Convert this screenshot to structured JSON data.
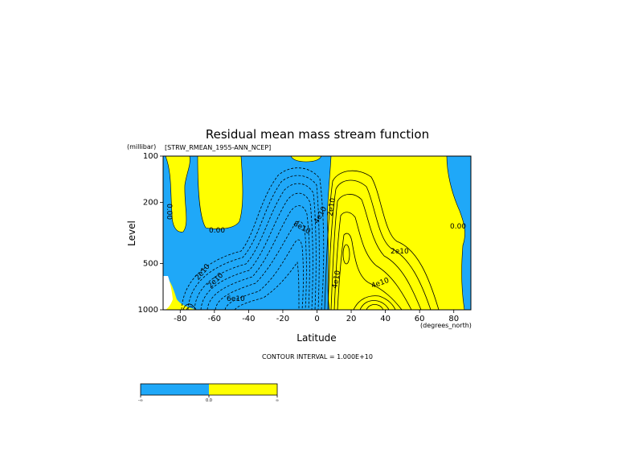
{
  "chart_data": {
    "type": "contour",
    "title": "Residual mean mass stream function",
    "dataset_label": "[STRW_RMEAN_1955-ANN_NCEP]",
    "xlabel": "Latitude",
    "x_units": "(degrees_north)",
    "ylabel": "Level",
    "y_units": "(millibar)",
    "xlim": [
      -90,
      90
    ],
    "ylim": [
      1000,
      100
    ],
    "y_scale": "log",
    "x_ticks": [
      -80,
      -60,
      -40,
      -20,
      0,
      20,
      40,
      60,
      80
    ],
    "x_tick_labels": [
      "-80",
      "-60",
      "-40",
      "-20",
      "0",
      "20",
      "40",
      "60",
      "80"
    ],
    "y_ticks": [
      100,
      200,
      500,
      1000
    ],
    "y_tick_labels": [
      "100",
      "200",
      "500",
      "1000"
    ],
    "contour_interval_text": "CONTOUR INTERVAL = 1.000E+10",
    "contour_labels": [
      "0.00",
      "0.00",
      "0.00",
      "2e10",
      "2e10",
      "4e10",
      "6e10",
      "8e10",
      "2e10",
      "4e10",
      "2e10",
      "4e10"
    ],
    "fill_colors": {
      "negative": "#1fa8f8",
      "positive": "#ffff00"
    },
    "colorbar": {
      "labels": [
        "-∞",
        "0.0",
        "∞"
      ],
      "colors": [
        "#1fa8f8",
        "#ffff00"
      ]
    }
  }
}
